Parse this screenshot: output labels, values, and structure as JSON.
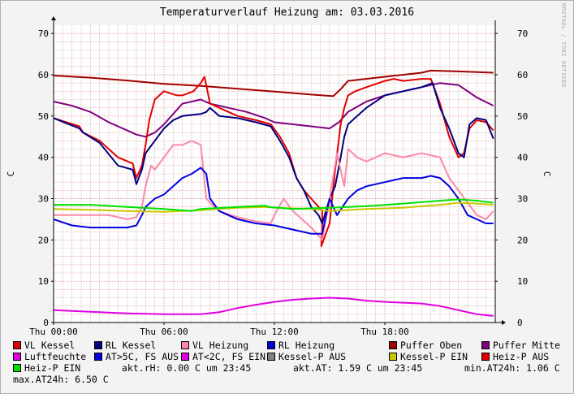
{
  "title": "Temperaturverlauf Heizung am: 03.03.2016",
  "watermark": "RRDTOOL / TOBI OETIKER",
  "chart_data": {
    "type": "line",
    "ylabel_left": "C",
    "ylabel_right": "C",
    "ylim": [
      0,
      72
    ],
    "xlim_hours": [
      0,
      24
    ],
    "x_unit": "hours since Thu 00:00",
    "x_ticks": [
      {
        "label": "Thu 00:00",
        "hour": 0
      },
      {
        "label": "Thu 06:00",
        "hour": 6
      },
      {
        "label": "Thu 12:00",
        "hour": 12
      },
      {
        "label": "Thu 18:00",
        "hour": 18
      }
    ],
    "y_ticks": [
      0,
      10,
      20,
      30,
      40,
      50,
      60,
      70
    ],
    "grid": true,
    "series": [
      {
        "name": "Puffer Oben",
        "color": "#a00000",
        "points": [
          [
            0,
            59.8
          ],
          [
            2,
            59.3
          ],
          [
            4,
            58.6
          ],
          [
            6,
            57.8
          ],
          [
            8,
            57.3
          ],
          [
            10,
            56.6
          ],
          [
            12,
            55.9
          ],
          [
            14,
            55.2
          ],
          [
            15.2,
            54.8
          ],
          [
            15.6,
            56.5
          ],
          [
            16,
            58.5
          ],
          [
            18,
            59.5
          ],
          [
            20,
            60.5
          ],
          [
            20.5,
            61
          ],
          [
            22,
            60.8
          ],
          [
            23.9,
            60.5
          ]
        ]
      },
      {
        "name": "Puffer Mitte",
        "color": "#800080",
        "points": [
          [
            0,
            53.5
          ],
          [
            1,
            52.5
          ],
          [
            2,
            51
          ],
          [
            3,
            48.5
          ],
          [
            4,
            46.5
          ],
          [
            4.5,
            45.5
          ],
          [
            5,
            45
          ],
          [
            5.5,
            46
          ],
          [
            6,
            48
          ],
          [
            6.5,
            50.5
          ],
          [
            7,
            53
          ],
          [
            8,
            54
          ],
          [
            8.5,
            53
          ],
          [
            9.5,
            52
          ],
          [
            10.5,
            51
          ],
          [
            11.5,
            49.5
          ],
          [
            12,
            48.5
          ],
          [
            13,
            48
          ],
          [
            14,
            47.5
          ],
          [
            15,
            47
          ],
          [
            15.5,
            48.5
          ],
          [
            16,
            51
          ],
          [
            17,
            53.5
          ],
          [
            18,
            55
          ],
          [
            19,
            56
          ],
          [
            20,
            57
          ],
          [
            21,
            58
          ],
          [
            22,
            57.5
          ],
          [
            23,
            54.5
          ],
          [
            23.9,
            52.5
          ]
        ]
      },
      {
        "name": "VL Kessel",
        "color": "#e00000",
        "points": [
          [
            0,
            49.5
          ],
          [
            1.4,
            47.5
          ],
          [
            1.6,
            46
          ],
          [
            2.5,
            44
          ],
          [
            3.5,
            40
          ],
          [
            4.3,
            38.5
          ],
          [
            4.5,
            35
          ],
          [
            4.8,
            38
          ],
          [
            5,
            43
          ],
          [
            5.2,
            49
          ],
          [
            5.5,
            54
          ],
          [
            6,
            56
          ],
          [
            6.7,
            55
          ],
          [
            7,
            55
          ],
          [
            7.6,
            56
          ],
          [
            8,
            58
          ],
          [
            8.2,
            59.5
          ],
          [
            8.5,
            53
          ],
          [
            9,
            52
          ],
          [
            10,
            50
          ],
          [
            11,
            49
          ],
          [
            11.8,
            48
          ],
          [
            12.3,
            45
          ],
          [
            12.8,
            41
          ],
          [
            13.2,
            35
          ],
          [
            13.6,
            32
          ],
          [
            14,
            30
          ],
          [
            14.4,
            28
          ],
          [
            14.6,
            27
          ],
          [
            14.6,
            22.5
          ],
          [
            14.55,
            18.5
          ],
          [
            15,
            24
          ],
          [
            15.3,
            37
          ],
          [
            15.6,
            48
          ],
          [
            15.8,
            52
          ],
          [
            16,
            55
          ],
          [
            16.4,
            56
          ],
          [
            17,
            57
          ],
          [
            18,
            58.5
          ],
          [
            18.5,
            59
          ],
          [
            19,
            58.5
          ],
          [
            20,
            59
          ],
          [
            20.5,
            59
          ],
          [
            21,
            53
          ],
          [
            21.5,
            45
          ],
          [
            22,
            40
          ],
          [
            22.3,
            41
          ],
          [
            22.6,
            47
          ],
          [
            23,
            49
          ],
          [
            23.5,
            48.5
          ],
          [
            23.9,
            46.5
          ]
        ]
      },
      {
        "name": "RL Kessel",
        "color": "#000080",
        "points": [
          [
            0,
            49.5
          ],
          [
            1.4,
            47
          ],
          [
            1.6,
            46
          ],
          [
            2.5,
            43.5
          ],
          [
            3.5,
            38
          ],
          [
            4.3,
            37
          ],
          [
            4.5,
            33.5
          ],
          [
            4.8,
            37
          ],
          [
            5,
            41
          ],
          [
            5.5,
            44
          ],
          [
            6,
            47
          ],
          [
            6.5,
            49
          ],
          [
            7,
            50
          ],
          [
            8,
            50.5
          ],
          [
            8.3,
            51
          ],
          [
            8.5,
            52
          ],
          [
            9,
            50
          ],
          [
            10,
            49.5
          ],
          [
            11,
            48.5
          ],
          [
            11.8,
            47.5
          ],
          [
            12.3,
            44
          ],
          [
            12.8,
            40
          ],
          [
            13.2,
            35
          ],
          [
            13.6,
            32
          ],
          [
            14,
            28
          ],
          [
            14.4,
            26
          ],
          [
            14.6,
            24
          ],
          [
            15,
            30
          ],
          [
            15.3,
            33
          ],
          [
            15.6,
            40
          ],
          [
            15.8,
            45
          ],
          [
            16,
            48
          ],
          [
            16.5,
            50
          ],
          [
            17,
            52
          ],
          [
            18,
            55
          ],
          [
            19,
            56
          ],
          [
            20,
            57
          ],
          [
            20.6,
            58
          ],
          [
            21,
            52
          ],
          [
            21.5,
            47
          ],
          [
            22,
            41
          ],
          [
            22.3,
            40
          ],
          [
            22.6,
            48
          ],
          [
            23,
            49.5
          ],
          [
            23.5,
            49
          ],
          [
            23.9,
            44.5
          ]
        ]
      },
      {
        "name": "VL Heizung",
        "color": "#ff88aa",
        "points": [
          [
            0,
            26
          ],
          [
            1,
            26
          ],
          [
            2,
            26
          ],
          [
            3,
            26
          ],
          [
            4,
            25
          ],
          [
            4.5,
            25.5
          ],
          [
            4.8,
            28
          ],
          [
            5,
            33
          ],
          [
            5.3,
            38
          ],
          [
            5.5,
            37
          ],
          [
            6,
            40
          ],
          [
            6.5,
            43
          ],
          [
            7,
            43
          ],
          [
            7.5,
            44
          ],
          [
            8,
            43
          ],
          [
            8.3,
            30
          ],
          [
            8.5,
            29
          ],
          [
            9,
            27
          ],
          [
            10,
            25.5
          ],
          [
            11,
            24.5
          ],
          [
            11.8,
            24
          ],
          [
            12,
            26
          ],
          [
            12.5,
            30
          ],
          [
            13,
            27
          ],
          [
            13.5,
            25
          ],
          [
            14,
            23
          ],
          [
            14.6,
            20
          ],
          [
            15,
            30
          ],
          [
            15.4,
            41
          ],
          [
            15.8,
            33
          ],
          [
            16,
            42
          ],
          [
            16.5,
            40
          ],
          [
            17,
            39
          ],
          [
            17.5,
            40
          ],
          [
            18,
            41
          ],
          [
            19,
            40
          ],
          [
            20,
            41
          ],
          [
            21,
            40
          ],
          [
            21.5,
            35
          ],
          [
            22,
            32
          ],
          [
            22.5,
            29
          ],
          [
            23,
            26
          ],
          [
            23.5,
            25
          ],
          [
            23.9,
            27
          ]
        ]
      },
      {
        "name": "RL Heizung",
        "color": "#0000e0",
        "points": [
          [
            0,
            25
          ],
          [
            1,
            23.5
          ],
          [
            2,
            23
          ],
          [
            3,
            23
          ],
          [
            4,
            23
          ],
          [
            4.5,
            23.5
          ],
          [
            4.8,
            26
          ],
          [
            5,
            28
          ],
          [
            5.5,
            30
          ],
          [
            6,
            31
          ],
          [
            6.5,
            33
          ],
          [
            7,
            35
          ],
          [
            7.5,
            36
          ],
          [
            8,
            37.5
          ],
          [
            8.3,
            36
          ],
          [
            8.5,
            30
          ],
          [
            9,
            27
          ],
          [
            10,
            25
          ],
          [
            11,
            24
          ],
          [
            12,
            23.5
          ],
          [
            13,
            22.5
          ],
          [
            14,
            21.5
          ],
          [
            14.6,
            21.5
          ],
          [
            15,
            30
          ],
          [
            15.4,
            26
          ],
          [
            16,
            30
          ],
          [
            16.5,
            32
          ],
          [
            17,
            33
          ],
          [
            18,
            34
          ],
          [
            19,
            35
          ],
          [
            20,
            35
          ],
          [
            20.5,
            35.5
          ],
          [
            21,
            35
          ],
          [
            21.5,
            33
          ],
          [
            22,
            30
          ],
          [
            22.5,
            26
          ],
          [
            23,
            25
          ],
          [
            23.5,
            24
          ],
          [
            23.9,
            24
          ]
        ]
      },
      {
        "name": "Luftfeuchte",
        "color": "#e000e0",
        "points": [
          [
            0,
            3
          ],
          [
            2,
            2.6
          ],
          [
            4,
            2.2
          ],
          [
            6,
            2
          ],
          [
            8,
            2
          ],
          [
            9,
            2.5
          ],
          [
            10,
            3.5
          ],
          [
            11,
            4.3
          ],
          [
            12,
            5
          ],
          [
            13,
            5.5
          ],
          [
            14,
            5.8
          ],
          [
            15,
            6
          ],
          [
            16,
            5.8
          ],
          [
            17,
            5.3
          ],
          [
            18,
            5
          ],
          [
            19,
            4.8
          ],
          [
            20,
            4.6
          ],
          [
            21,
            4
          ],
          [
            22,
            3
          ],
          [
            23,
            2
          ],
          [
            23.9,
            1.6
          ]
        ]
      },
      {
        "name": "Kessel-P EIN",
        "color": "#c8c800",
        "points": [
          [
            0,
            27.5
          ],
          [
            2,
            27.3
          ],
          [
            4,
            27
          ],
          [
            6,
            26.8
          ],
          [
            8,
            27.2
          ],
          [
            10,
            27.8
          ],
          [
            11.5,
            28
          ],
          [
            12,
            27.8
          ],
          [
            14,
            27.5
          ],
          [
            15,
            27
          ],
          [
            17,
            27.5
          ],
          [
            19,
            27.8
          ],
          [
            21,
            28.5
          ],
          [
            22,
            29
          ],
          [
            23,
            28.8
          ],
          [
            23.9,
            28.5
          ]
        ]
      },
      {
        "name": "Heiz-P EIN",
        "color": "#00e000",
        "points": [
          [
            0,
            28.5
          ],
          [
            2,
            28.5
          ],
          [
            4,
            28
          ],
          [
            6,
            27.5
          ],
          [
            7.5,
            27
          ],
          [
            8,
            27.5
          ],
          [
            10,
            28
          ],
          [
            11.5,
            28.3
          ],
          [
            11.7,
            28
          ],
          [
            13,
            27.5
          ],
          [
            15,
            27.8
          ],
          [
            17,
            28.2
          ],
          [
            19,
            28.8
          ],
          [
            21,
            29.5
          ],
          [
            22,
            29.8
          ],
          [
            23,
            29.5
          ],
          [
            23.9,
            29
          ]
        ]
      }
    ],
    "legend": [
      {
        "label": "VL Kessel",
        "color": "#e00000"
      },
      {
        "label": "RL Kessel",
        "color": "#000080"
      },
      {
        "label": "VL Heizung",
        "color": "#ff88aa"
      },
      {
        "label": "RL Heizung",
        "color": "#0000e0"
      },
      {
        "label": "Puffer Oben",
        "color": "#a00000"
      },
      {
        "label": "Puffer Mitte",
        "color": "#800080"
      },
      {
        "label": "Luftfeuchte",
        "color": "#e000e0"
      },
      {
        "label": "AT>5C, FS AUS",
        "color": "#0000e0"
      },
      {
        "label": "AT<2C, FS EIN",
        "color": "#e000e0"
      },
      {
        "label": "Kessel-P AUS",
        "color": "#808080"
      },
      {
        "label": "Kessel-P EIN",
        "color": "#c8c800"
      },
      {
        "label": "Heiz-P AUS",
        "color": "#e00000"
      },
      {
        "label": "Heiz-P EIN",
        "color": "#00e000"
      }
    ],
    "stats": {
      "akt_rh": "akt.rH: 0.00 C um 23:45",
      "akt_at": "akt.AT: 1.59 C um 23:45",
      "min_at": "min.AT24h: 1.06 C",
      "max_at": "max.AT24h: 6.50 C"
    }
  }
}
